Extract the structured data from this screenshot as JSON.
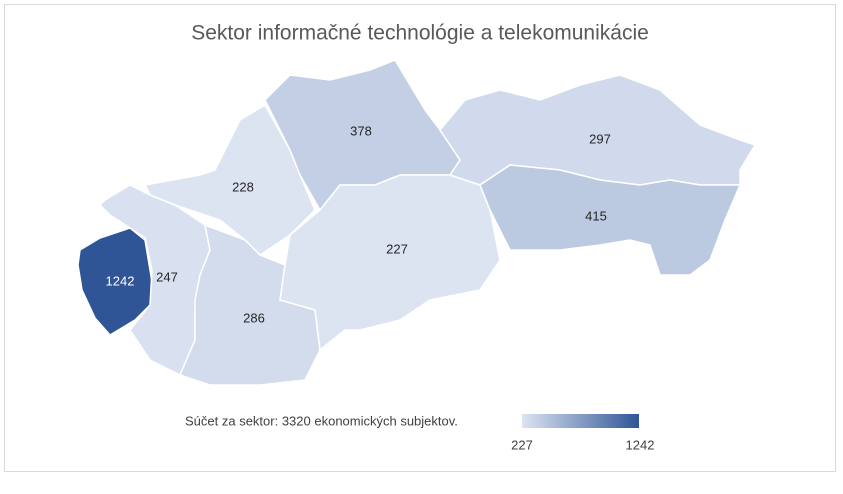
{
  "chart_data": {
    "type": "choropleth",
    "title": "Sektor informačné technológie a telekomunikácie",
    "values": [
      1242,
      247,
      228,
      286,
      378,
      227,
      297,
      415
    ],
    "note": "Súčet za sektor: 3320 ekonomických subjektov.",
    "colorlim": [
      227,
      1242
    ],
    "colors": [
      "#dce4f2",
      "#2f5597"
    ]
  }
}
